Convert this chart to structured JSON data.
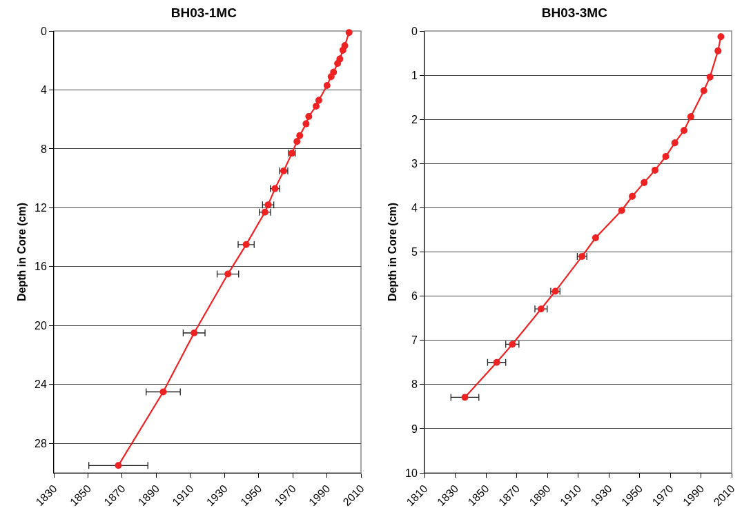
{
  "chart_data": [
    {
      "type": "line",
      "title": "BH03-1MC",
      "ylabel": "Depth in Core (cm)",
      "xlim": [
        1830,
        2010
      ],
      "xticks": [
        1830,
        1850,
        1870,
        1890,
        1910,
        1930,
        1950,
        1970,
        1990,
        2010
      ],
      "ylim": [
        30,
        0
      ],
      "yticks": [
        0,
        4,
        8,
        12,
        16,
        20,
        24,
        28
      ],
      "grid": "y",
      "marker": "circle",
      "line_style": "solid",
      "series": [
        {
          "color": "#ee2222",
          "x": [
            2003,
            2000.5,
            1999.4,
            1997.6,
            1996.3,
            1993.9,
            1992.5,
            1990.1,
            1985.3,
            1983.7,
            1979.4,
            1977.8,
            1974.1,
            1972.5,
            1969.5,
            1964.7,
            1959.6,
            1955.6,
            1953.7,
            1942.7,
            1932,
            1912.2,
            1894.1,
            1867.8
          ],
          "values": [
            0.1,
            1.0,
            1.3,
            1.9,
            2.2,
            2.8,
            3.1,
            3.7,
            4.7,
            5.1,
            5.8,
            6.3,
            7.1,
            7.5,
            8.3,
            9.5,
            10.7,
            11.8,
            12.3,
            14.5,
            16.5,
            20.5,
            24.5,
            29.5
          ],
          "xerrors": [
            null,
            null,
            null,
            null,
            null,
            null,
            null,
            null,
            null,
            null,
            null,
            null,
            null,
            null,
            2,
            2.4,
            2.7,
            3.3,
            3.3,
            4.7,
            6.3,
            6.4,
            10,
            17.3
          ]
        }
      ]
    },
    {
      "type": "line",
      "title": "BH03-3MC",
      "ylabel": "Depth in Core (cm)",
      "xlim": [
        1810,
        2010
      ],
      "xticks": [
        1810,
        1830,
        1850,
        1870,
        1890,
        1910,
        1930,
        1950,
        1970,
        1990,
        2010
      ],
      "ylim": [
        10,
        0
      ],
      "yticks": [
        0,
        1,
        2,
        3,
        4,
        5,
        6,
        7,
        8,
        9,
        10
      ],
      "grid": "y",
      "marker": "circle",
      "line_style": "solid",
      "series": [
        {
          "color": "#ee2222",
          "x": [
            2003,
            2001.1,
            1995.9,
            1991.9,
            1983.4,
            1979,
            1973,
            1967.1,
            1960.1,
            1953,
            1945.3,
            1938.4,
            1921.4,
            1912.6,
            1895.2,
            1885.9,
            1867.2,
            1857,
            1836.3
          ],
          "values": [
            0.13,
            0.45,
            1.04,
            1.35,
            1.94,
            2.25,
            2.53,
            2.84,
            3.15,
            3.43,
            3.74,
            4.06,
            4.68,
            5.1,
            5.89,
            6.29,
            7.09,
            7.5,
            8.29
          ],
          "xerrors": [
            null,
            null,
            null,
            null,
            null,
            null,
            null,
            null,
            null,
            null,
            null,
            null,
            null,
            3.1,
            3,
            4,
            4.3,
            5.9,
            9.1
          ]
        }
      ]
    }
  ]
}
